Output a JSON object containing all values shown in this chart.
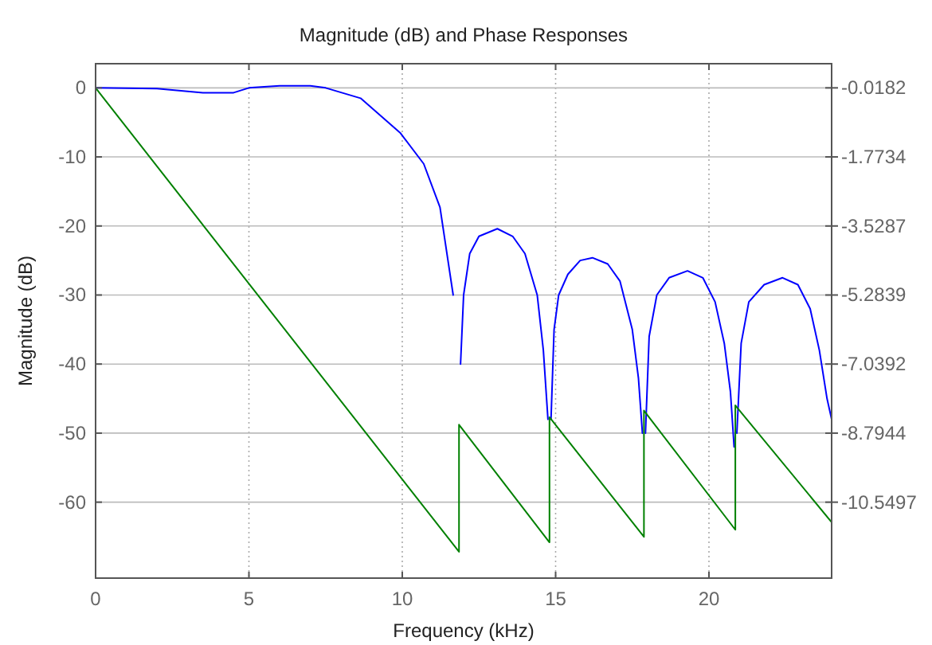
{
  "chart_data": {
    "type": "line",
    "title": "Magnitude (dB) and Phase Responses",
    "xlabel": "Frequency (kHz)",
    "ylabel": "Magnitude (dB)",
    "xlim": [
      0,
      24
    ],
    "xticks": [
      0,
      5,
      10,
      15,
      20
    ],
    "ylim": [
      -71,
      3.5
    ],
    "yticks": [
      -60,
      -50,
      -40,
      -30,
      -20,
      -10,
      0
    ],
    "y2lim": [
      -12.48,
      0.596
    ],
    "y2ticks": [
      -10.5497,
      -8.7944,
      -7.0392,
      -5.2839,
      -3.5287,
      -1.7734,
      -0.0182
    ],
    "grid": true,
    "line_style": "solid",
    "marker": "none",
    "series": [
      {
        "color": "#0000ff",
        "x": [
          0,
          2,
          3.5,
          4.5,
          5,
          6,
          7,
          7.5,
          8.64,
          9.93,
          10.7,
          11.23,
          11.49,
          11.66,
          11.85,
          11.9,
          12.0,
          12.2,
          12.5,
          13.1,
          13.6,
          14.0,
          14.4,
          14.6,
          14.75,
          14.8,
          14.85,
          14.95,
          15.1,
          15.4,
          15.8,
          16.2,
          16.7,
          17.1,
          17.5,
          17.7,
          17.83,
          17.88,
          17.93,
          18.05,
          18.3,
          18.7,
          19.3,
          19.8,
          20.2,
          20.5,
          20.7,
          20.82,
          20.86,
          20.91,
          21.05,
          21.3,
          21.8,
          22.4,
          22.9,
          23.3,
          23.6,
          23.85,
          24
        ],
        "values": [
          0,
          -0.1,
          -0.7,
          -0.7,
          0,
          0.3,
          0.3,
          0,
          -1.5,
          -6.5,
          -11,
          -17.3,
          -25,
          -30,
          null,
          -40,
          -30,
          -24,
          -21.5,
          -20.4,
          -21.5,
          -24,
          -30,
          -38,
          -48,
          null,
          -48,
          -35,
          -30,
          -27,
          -25,
          -24.6,
          -25.5,
          -28,
          -35,
          -42,
          -50,
          null,
          -50,
          -36,
          -30,
          -27.5,
          -26.5,
          -27.5,
          -31,
          -37,
          -44,
          -52,
          null,
          -50,
          -37,
          -31,
          -28.5,
          -27.5,
          -28.5,
          -32,
          -38,
          -45,
          -48
        ]
      },
      {
        "color": "#008000",
        "axis": "y2",
        "x": [
          0,
          11.85,
          11.85,
          14.8,
          14.8,
          17.88,
          17.88,
          20.86,
          20.86,
          24
        ],
        "values": [
          -0.02,
          -11.81,
          -8.58,
          -11.57,
          -8.39,
          -11.43,
          -8.22,
          -11.25,
          -8.09,
          -11.06
        ]
      }
    ]
  }
}
